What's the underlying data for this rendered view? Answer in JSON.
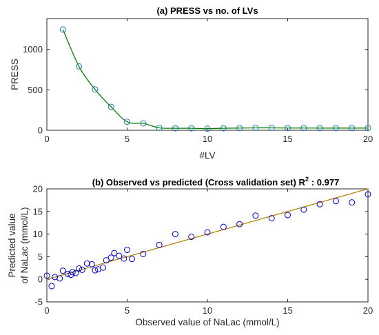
{
  "chart_data": [
    {
      "type": "line",
      "title": "(a) PRESS vs no. of LVs",
      "xlabel": "#LV",
      "ylabel": "PRESS",
      "xlim": [
        0,
        20
      ],
      "ylim": [
        0,
        1380
      ],
      "xticks": [
        0,
        5,
        10,
        15,
        20
      ],
      "yticks": [
        0,
        500,
        1000
      ],
      "grid": false,
      "line_color": "#008000",
      "marker_color": "#1f77b4",
      "x": [
        1,
        2,
        3,
        4,
        5,
        6,
        7,
        8,
        9,
        10,
        11,
        12,
        13,
        14,
        15,
        16,
        17,
        18,
        19,
        20
      ],
      "y": [
        1245,
        790,
        505,
        290,
        105,
        85,
        30,
        25,
        25,
        20,
        25,
        28,
        30,
        30,
        28,
        28,
        27,
        27,
        27,
        28
      ]
    },
    {
      "type": "scatter",
      "title_main": "(b) Observed vs predicted (Cross validation set) R",
      "title_sup": "2",
      "title_tail": " : 0.977",
      "xlabel": "Observed value of NaLac (mmol/L)",
      "ylabel_line1": "Predicted value",
      "ylabel_line2": "of NaLac (mmol/L)",
      "xlim": [
        0,
        20
      ],
      "ylim": [
        -5,
        20
      ],
      "xticks": [
        0,
        5,
        10,
        15,
        20
      ],
      "yticks": [
        -5,
        0,
        5,
        10,
        15,
        20
      ],
      "grid": false,
      "marker_color": "#0000cc",
      "fit_line_color": "#b8860b",
      "fit_line": [
        [
          0,
          0
        ],
        [
          20,
          20
        ]
      ],
      "points": [
        [
          0,
          0.8
        ],
        [
          0.3,
          -1.5
        ],
        [
          0.5,
          0.5
        ],
        [
          0.8,
          0.2
        ],
        [
          1.0,
          1.9
        ],
        [
          1.3,
          1.2
        ],
        [
          1.5,
          1.0
        ],
        [
          1.6,
          1.6
        ],
        [
          1.8,
          1.4
        ],
        [
          2.0,
          2.4
        ],
        [
          2.2,
          2.1
        ],
        [
          2.5,
          3.5
        ],
        [
          2.8,
          3.3
        ],
        [
          3.0,
          2.0
        ],
        [
          3.2,
          2.2
        ],
        [
          3.5,
          2.6
        ],
        [
          3.7,
          4.2
        ],
        [
          4.0,
          4.8
        ],
        [
          4.2,
          5.8
        ],
        [
          4.5,
          5.2
        ],
        [
          4.8,
          4.6
        ],
        [
          5.0,
          6.5
        ],
        [
          5.3,
          4.5
        ],
        [
          6.0,
          5.6
        ],
        [
          7.0,
          7.6
        ],
        [
          8.0,
          10.0
        ],
        [
          9.0,
          9.4
        ],
        [
          10.0,
          10.4
        ],
        [
          11.0,
          11.6
        ],
        [
          12.0,
          12.2
        ],
        [
          13.0,
          14.1
        ],
        [
          14.0,
          13.5
        ],
        [
          15.0,
          14.2
        ],
        [
          16.0,
          15.4
        ],
        [
          17.0,
          16.6
        ],
        [
          18.0,
          17.3
        ],
        [
          19.0,
          17.0
        ],
        [
          20.0,
          18.8
        ]
      ]
    }
  ]
}
